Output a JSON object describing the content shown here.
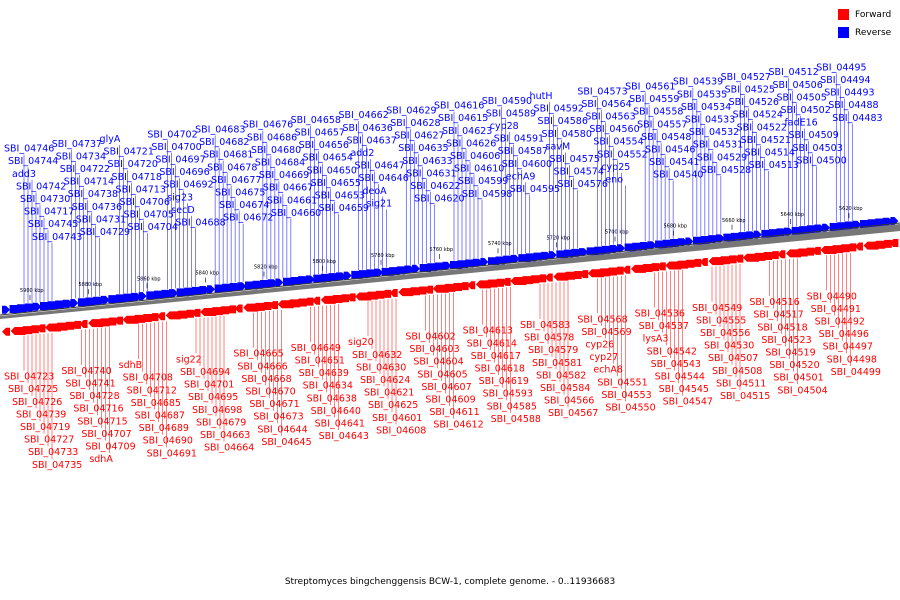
{
  "legend": {
    "forward_label": "Forward",
    "reverse_label": "Reverse",
    "forward_color": "#ff0000",
    "reverse_color": "#0000ff"
  },
  "caption": "Streptomyces bingchenggensis BCW-1, complete genome. - 0..11936683",
  "scale": {
    "ticks": [
      "5900 kbp",
      "5880 kbp",
      "5860 kbp",
      "5840 kbp",
      "5820 kbp",
      "5800 kbp",
      "5780 kbp",
      "5760 kbp",
      "5740 kbp",
      "5720 kbp",
      "5700 kbp",
      "5680 kbp",
      "5660 kbp",
      "5640 kbp",
      "5620 kbp"
    ]
  },
  "reverse_genes": [
    "SBI_04746",
    "SBI_04744",
    "add3",
    "SBI_04742",
    "SBI_04730",
    "SBI_04717",
    "SBI_04745",
    "SBI_04743",
    "SBI_04737",
    "SBI_04734",
    "SBI_04722",
    "SBI_04714",
    "SBI_04738",
    "SBI_04736",
    "SBI_04731",
    "SBI_04729",
    "glyA",
    "SBI_04721",
    "SBI_04720",
    "SBI_04718",
    "SBI_04713",
    "SBI_04706",
    "SBI_04705",
    "SBI_04704",
    "SBI_04702",
    "SBI_04700",
    "SBI_04697",
    "SBI_04696",
    "SBI_04692",
    "sig23",
    "secD",
    "SBI_04688",
    "SBI_04683",
    "SBI_04682",
    "SBI_04681",
    "SBI_04678",
    "SBI_04677",
    "SBI_04675",
    "SBI_04674",
    "SBI_04672",
    "SBI_04676",
    "SBI_04686",
    "SBI_04680",
    "SBI_04684",
    "SBI_04669",
    "SBI_04667",
    "SBI_04661",
    "SBI_04660",
    "SBI_04658",
    "SBI_04657",
    "SBI_04656",
    "SBI_04654",
    "SBI_04650",
    "SBI_04655",
    "SBI_04653",
    "SBI_04659",
    "SBI_04662",
    "SBI_04636",
    "SBI_04637",
    "add2",
    "SBI_04647",
    "SBI_04646",
    "deoA",
    "sig21",
    "SBI_04629",
    "SBI_04628",
    "SBI_04627",
    "SBI_04635",
    "SBI_04633",
    "SBI_04631",
    "SBI_04622",
    "SBI_04620",
    "SBI_04616",
    "SBI_04615",
    "SBI_04623",
    "SBI_04626",
    "SBI_04606",
    "SBI_04610",
    "SBI_04599",
    "SBI_04598",
    "SBI_04590",
    "SBI_04589",
    "cyp28",
    "SBI_04591",
    "SBI_04587",
    "SBI_04600",
    "echA9",
    "SBI_04595",
    "hutH",
    "SBI_04592",
    "SBI_04586",
    "SBI_04580",
    "savM",
    "SBI_04575",
    "SBI_04574",
    "SBI_04576",
    "SBI_04573",
    "SBI_04564",
    "SBI_04563",
    "SBI_04560",
    "SBI_04554",
    "SBI_04552",
    "cyp25",
    "eno",
    "SBI_04561",
    "SBI_04559",
    "SBI_04558",
    "SBI_04557",
    "SBI_04548",
    "SBI_04546",
    "SBI_04541",
    "SBI_04540",
    "SBI_04539",
    "SBI_04535",
    "SBI_04534",
    "SBI_04533",
    "SBI_04532",
    "SBI_04531",
    "SBI_04529",
    "SBI_04528",
    "SBI_04527",
    "SBI_04525",
    "SBI_04526",
    "SBI_04524",
    "SBI_04522",
    "SBI_04521",
    "SBI_04514",
    "SBI_04513",
    "SBI_04512",
    "SBI_04506",
    "SBI_04505",
    "SBI_04502",
    "fadE16",
    "SBI_04509",
    "SBI_04503",
    "SBI_04500",
    "SBI_04495",
    "SBI_04494",
    "SBI_04493",
    "SBI_04488",
    "SBI_04483"
  ],
  "forward_genes": [
    "SBI_04723",
    "SBI_04725",
    "SBI_04726",
    "SBI_04739",
    "SBI_04719",
    "SBI_04727",
    "SBI_04733",
    "SBI_04735",
    "SBI_04740",
    "SBI_04741",
    "SBI_04728",
    "SBI_04716",
    "SBI_04715",
    "SBI_04707",
    "SBI_04709",
    "sdhA",
    "sdhB",
    "SBI_04708",
    "SBI_04712",
    "SBI_04685",
    "SBI_04687",
    "SBI_04689",
    "SBI_04690",
    "SBI_04691",
    "sig22",
    "SBI_04694",
    "SBI_04701",
    "SBI_04695",
    "SBI_04698",
    "SBI_04679",
    "SBI_04663",
    "SBI_04664",
    "SBI_04665",
    "SBI_04666",
    "SBI_04668",
    "SBI_04670",
    "SBI_04671",
    "SBI_04673",
    "SBI_04644",
    "SBI_04645",
    "SBI_04649",
    "SBI_04651",
    "SBI_04639",
    "SBI_04634",
    "SBI_04638",
    "SBI_04640",
    "SBI_04641",
    "SBI_04643",
    "sig20",
    "SBI_04632",
    "SBI_04630",
    "SBI_04624",
    "SBI_04621",
    "SBI_04625",
    "SBI_04601",
    "SBI_04608",
    "SBI_04602",
    "SBI_04603",
    "SBI_04604",
    "SBI_04605",
    "SBI_04607",
    "SBI_04609",
    "SBI_04611",
    "SBI_04612",
    "SBI_04613",
    "SBI_04614",
    "SBI_04617",
    "SBI_04618",
    "SBI_04619",
    "SBI_04593",
    "SBI_04585",
    "SBI_04588",
    "SBI_04583",
    "SBI_04578",
    "SBI_04579",
    "SBI_04581",
    "SBI_04582",
    "SBI_04584",
    "SBI_04566",
    "SBI_04567",
    "SBI_04568",
    "SBI_04569",
    "cyp26",
    "cyp27",
    "echA8",
    "SBI_04551",
    "SBI_04553",
    "SBI_04550",
    "SBI_04536",
    "SBI_04537",
    "lysA3",
    "SBI_04542",
    "SBI_04543",
    "SBI_04544",
    "SBI_04545",
    "SBI_04547",
    "SBI_04549",
    "SBI_04555",
    "SBI_04556",
    "SBI_04530",
    "SBI_04507",
    "SBI_04508",
    "SBI_04511",
    "SBI_04515",
    "SBI_04516",
    "SBI_04517",
    "SBI_04518",
    "SBI_04523",
    "SBI_04519",
    "SBI_04520",
    "SBI_04501",
    "SBI_04504",
    "SBI_04490",
    "SBI_04491",
    "SBI_04492",
    "SBI_04496",
    "SBI_04497",
    "SBI_04498",
    "SBI_04499"
  ]
}
